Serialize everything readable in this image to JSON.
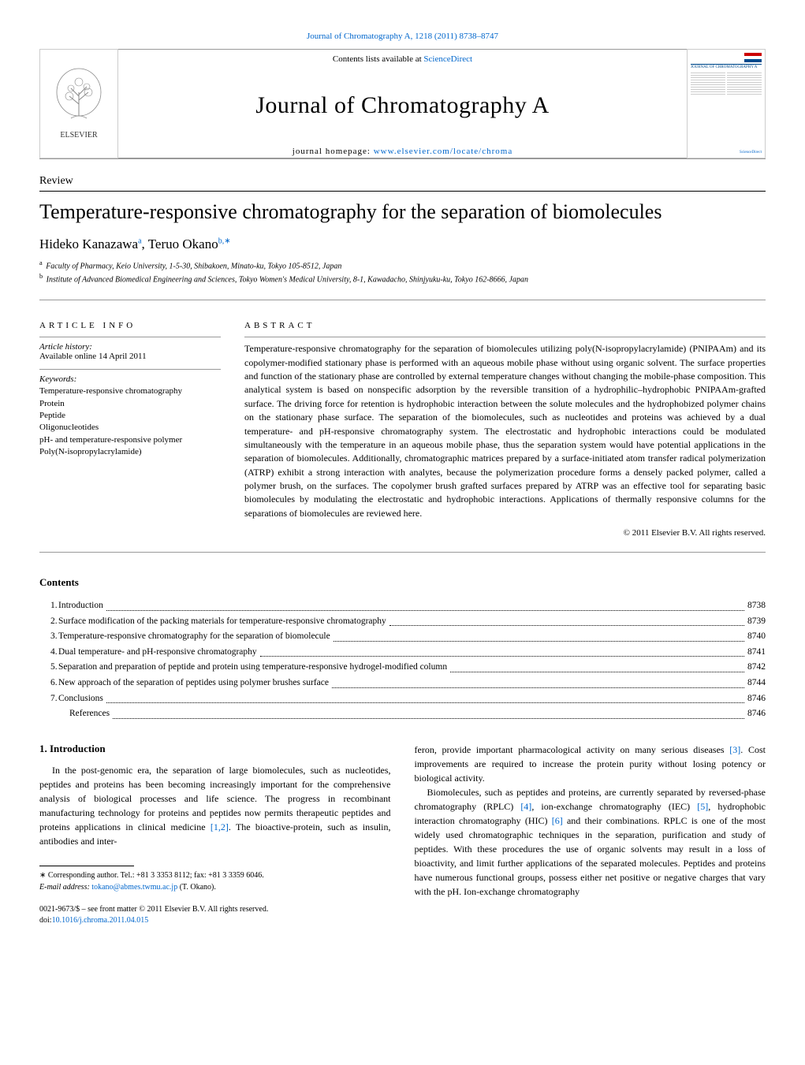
{
  "top_link": "Journal of Chromatography A, 1218 (2011) 8738–8747",
  "masthead": {
    "contents_prefix": "Contents lists available at ",
    "contents_link": "ScienceDirect",
    "journal_name": "Journal of Chromatography A",
    "homepage_prefix": "journal homepage: ",
    "homepage_url": "www.elsevier.com/locate/chroma",
    "publisher": "ELSEVIER",
    "cover_title": "JOURNAL OF CHROMATOGRAPHY A",
    "cover_footer": "ScienceDirect"
  },
  "article": {
    "type": "Review",
    "title": "Temperature-responsive chromatography for the separation of biomolecules",
    "authors_html": "Hideko Kanazawa",
    "author1_sup": "a",
    "authors_sep": ", ",
    "author2": "Teruo Okano",
    "author2_sup": "b,∗",
    "affiliations": {
      "a": "Faculty of Pharmacy, Keio University, 1-5-30, Shibakoen, Minato-ku, Tokyo 105-8512, Japan",
      "b": "Institute of Advanced Biomedical Engineering and Sciences, Tokyo Women's Medical University, 8-1, Kawadacho, Shinjyuku-ku, Tokyo 162-8666, Japan"
    }
  },
  "info": {
    "heading": "article info",
    "history_label": "Article history:",
    "history_value": "Available online 14 April 2011",
    "keywords_label": "Keywords:",
    "keywords": [
      "Temperature-responsive chromatography",
      "Protein",
      "Peptide",
      "Oligonucleotides",
      "pH- and temperature-responsive polymer",
      "Poly(N-isopropylacrylamide)"
    ]
  },
  "abstract": {
    "heading": "abstract",
    "text": "Temperature-responsive chromatography for the separation of biomolecules utilizing poly(N-isopropylacrylamide) (PNIPAAm) and its copolymer-modified stationary phase is performed with an aqueous mobile phase without using organic solvent. The surface properties and function of the stationary phase are controlled by external temperature changes without changing the mobile-phase composition. This analytical system is based on nonspecific adsorption by the reversible transition of a hydrophilic–hydrophobic PNIPAAm-grafted surface. The driving force for retention is hydrophobic interaction between the solute molecules and the hydrophobized polymer chains on the stationary phase surface. The separation of the biomolecules, such as nucleotides and proteins was achieved by a dual temperature- and pH-responsive chromatography system. The electrostatic and hydrophobic interactions could be modulated simultaneously with the temperature in an aqueous mobile phase, thus the separation system would have potential applications in the separation of biomolecules. Additionally, chromatographic matrices prepared by a surface-initiated atom transfer radical polymerization (ATRP) exhibit a strong interaction with analytes, because the polymerization procedure forms a densely packed polymer, called a polymer brush, on the surfaces. The copolymer brush grafted surfaces prepared by ATRP was an effective tool for separating basic biomolecules by modulating the electrostatic and hydrophobic interactions. Applications of thermally responsive columns for the separations of biomolecules are reviewed here.",
    "copyright": "© 2011 Elsevier B.V. All rights reserved."
  },
  "contents": {
    "heading": "Contents",
    "items": [
      {
        "num": "1.",
        "title": "Introduction",
        "page": "8738"
      },
      {
        "num": "2.",
        "title": "Surface modification of the packing materials for temperature-responsive chromatography",
        "page": "8739"
      },
      {
        "num": "3.",
        "title": "Temperature-responsive chromatography for the separation of biomolecule",
        "page": "8740"
      },
      {
        "num": "4.",
        "title": "Dual temperature- and pH-responsive chromatography",
        "page": "8741"
      },
      {
        "num": "5.",
        "title": "Separation and preparation of peptide and protein using temperature-responsive hydrogel-modified column",
        "page": "8742"
      },
      {
        "num": "6.",
        "title": "New approach of the separation of peptides using polymer brushes surface",
        "page": "8744"
      },
      {
        "num": "7.",
        "title": "Conclusions",
        "page": "8746"
      },
      {
        "num": "",
        "title": "References",
        "page": "8746",
        "indent": true
      }
    ]
  },
  "body": {
    "heading": "1. Introduction",
    "col1_p1_a": "In the post-genomic era, the separation of large biomolecules, such as nucleotides, peptides and proteins has been becoming increasingly important for the comprehensive analysis of biological processes and life science. The progress in recombinant manufacturing technology for proteins and peptides now permits therapeutic peptides and proteins applications in clinical medicine ",
    "col1_ref1": "[1,2]",
    "col1_p1_b": ". The bioactive-protein, such as insulin, antibodies and inter-",
    "col2_p1_a": "feron, provide important pharmacological activity on many serious diseases ",
    "col2_ref1": "[3]",
    "col2_p1_b": ". Cost improvements are required to increase the protein purity without losing potency or biological activity.",
    "col2_p2_a": "Biomolecules, such as peptides and proteins, are currently separated by reversed-phase chromatography (RPLC) ",
    "col2_ref2": "[4]",
    "col2_p2_b": ", ion-exchange chromatography (IEC) ",
    "col2_ref3": "[5]",
    "col2_p2_c": ", hydrophobic interaction chromatography (HIC) ",
    "col2_ref4": "[6]",
    "col2_p2_d": " and their combinations. RPLC is one of the most widely used chromatographic techniques in the separation, purification and study of peptides. With these procedures the use of organic solvents may result in a loss of bioactivity, and limit further applications of the separated molecules. Peptides and proteins have numerous functional groups, possess either net positive or negative charges that vary with the pH. Ion-exchange chromatography"
  },
  "footnote": {
    "corr_label": "∗ Corresponding author. Tel.: +81 3 3353 8112; fax: +81 3 3359 6046.",
    "email_label": "E-mail address:",
    "email": "tokano@abmes.twmu.ac.jp",
    "email_paren": "(T. Okano)."
  },
  "footer": {
    "line1": "0021-9673/$ – see front matter © 2011 Elsevier B.V. All rights reserved.",
    "doi_prefix": "doi:",
    "doi": "10.1016/j.chroma.2011.04.015"
  },
  "colors": {
    "link": "#0066cc",
    "text": "#000000",
    "rule": "#999999",
    "cover_accent": "#004b8d"
  }
}
